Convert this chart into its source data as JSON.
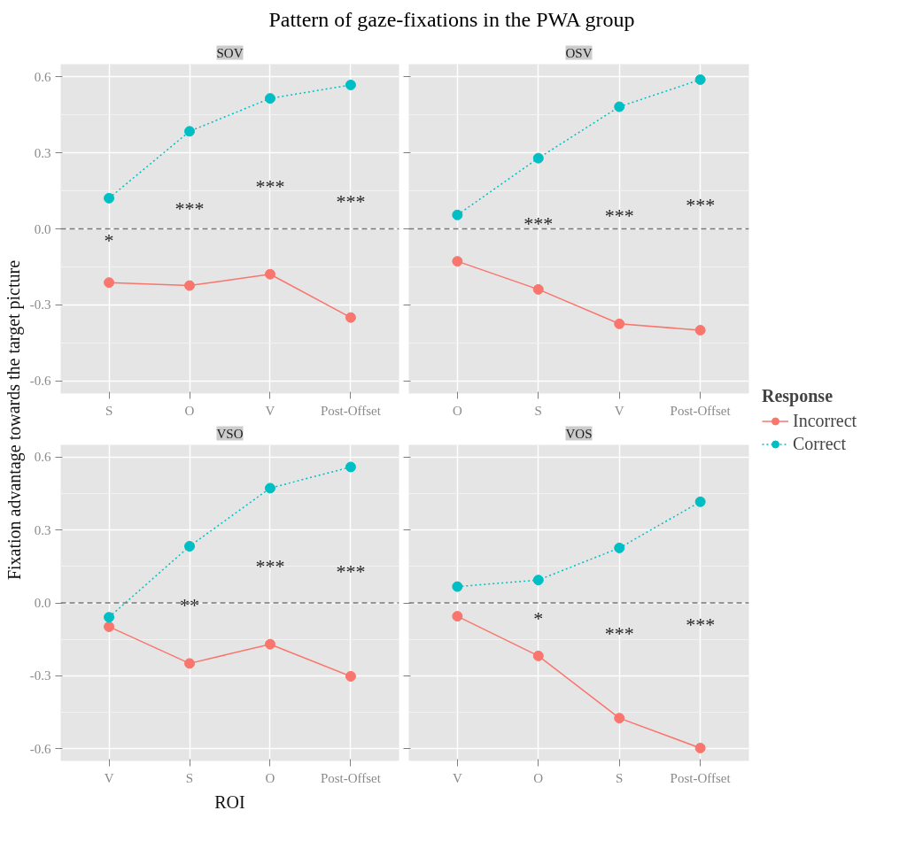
{
  "chart_data": [
    {
      "type": "line",
      "title": "Pattern of gaze-fixations in the PWA group",
      "subtitle": "SOV",
      "ylabel": "Fixation advantage towards the target picture",
      "legend_title": "Response",
      "legend": "right",
      "categories": [
        "S",
        "O",
        "V",
        "Post-Offset"
      ],
      "ylim": [
        -0.65,
        0.65
      ],
      "yticks": [
        {
          "value": -0.6,
          "label": "-0.6"
        },
        {
          "value": -0.3,
          "label": "-0.3"
        },
        {
          "value": 0.0,
          "label": "0.0"
        },
        {
          "value": 0.3,
          "label": "0.3"
        },
        {
          "value": 0.6,
          "label": "0.6"
        }
      ],
      "grid": true,
      "marker": "circle",
      "series": [
        {
          "name": "Incorrect",
          "color": "#f8766d",
          "line_style": "solid",
          "values": [
            -0.212,
            -0.224,
            -0.179,
            -0.35
          ]
        },
        {
          "name": "Correct",
          "color": "#00bfc4",
          "line_style": "dotted",
          "values": [
            0.121,
            0.385,
            0.515,
            0.568
          ]
        }
      ],
      "ref_lines": [
        {
          "axis": "y",
          "value": 0,
          "color": "#777777",
          "line_style": "dashed"
        }
      ],
      "annotations": [
        "*",
        "***",
        "***",
        "***"
      ]
    },
    {
      "type": "line",
      "subtitle": "OSV",
      "categories": [
        "O",
        "S",
        "V",
        "Post-Offset"
      ],
      "ylim": [
        -0.65,
        0.65
      ],
      "yticks": [
        -0.6,
        -0.3,
        0,
        0.3,
        0.6
      ],
      "tick_labels": "x",
      "grid": true,
      "marker": "circle",
      "series": [
        {
          "color": "#f8766d",
          "line_style": "solid",
          "values": [
            -0.128,
            -0.239,
            -0.375,
            -0.4
          ]
        },
        {
          "color": "#00bfc4",
          "line_style": "dotted",
          "values": [
            0.055,
            0.279,
            0.482,
            0.589
          ]
        }
      ],
      "ref_lines": [
        {
          "axis": "y",
          "value": 0,
          "color": "#777777",
          "line_style": "dashed"
        }
      ],
      "annotations": [
        "***",
        "***",
        "***"
      ]
    },
    {
      "type": "line",
      "subtitle": "VSO",
      "xlabel": "ROI",
      "categories": [
        "V",
        "S",
        "O",
        "Post-Offset"
      ],
      "ylim": [
        -0.65,
        0.65
      ],
      "yticks": [
        {
          "value": -0.6,
          "label": "-0.6"
        },
        {
          "value": -0.3,
          "label": "-0.3"
        },
        {
          "value": 0.0,
          "label": "0.0"
        },
        {
          "value": 0.3,
          "label": "0.3"
        },
        {
          "value": 0.6,
          "label": "0.6"
        }
      ],
      "grid": true,
      "marker": "circle",
      "series": [
        {
          "color": "#f8766d",
          "line_style": "solid",
          "values": [
            -0.098,
            -0.249,
            -0.17,
            -0.302
          ]
        },
        {
          "color": "#00bfc4",
          "line_style": "dotted",
          "values": [
            -0.059,
            0.233,
            0.472,
            0.559
          ]
        }
      ],
      "ref_lines": [
        {
          "axis": "y",
          "value": 0,
          "color": "#777777",
          "line_style": "dashed"
        }
      ],
      "annotations": [
        "**",
        "***",
        "***"
      ]
    },
    {
      "type": "line",
      "subtitle": "VOS",
      "categories": [
        "V",
        "O",
        "S",
        "Post-Offset"
      ],
      "ylim": [
        -0.65,
        0.65
      ],
      "yticks": [
        -0.6,
        -0.3,
        0,
        0.3,
        0.6
      ],
      "tick_labels": "x",
      "grid": true,
      "marker": "circle",
      "series": [
        {
          "color": "#f8766d",
          "line_style": "solid",
          "values": [
            -0.055,
            -0.218,
            -0.474,
            -0.597
          ]
        },
        {
          "color": "#00bfc4",
          "line_style": "dotted",
          "values": [
            0.067,
            0.094,
            0.226,
            0.416
          ]
        }
      ],
      "ref_lines": [
        {
          "axis": "y",
          "value": 0,
          "color": "#777777",
          "line_style": "dashed"
        }
      ],
      "annotations": [
        "*",
        "***",
        "***"
      ]
    }
  ]
}
